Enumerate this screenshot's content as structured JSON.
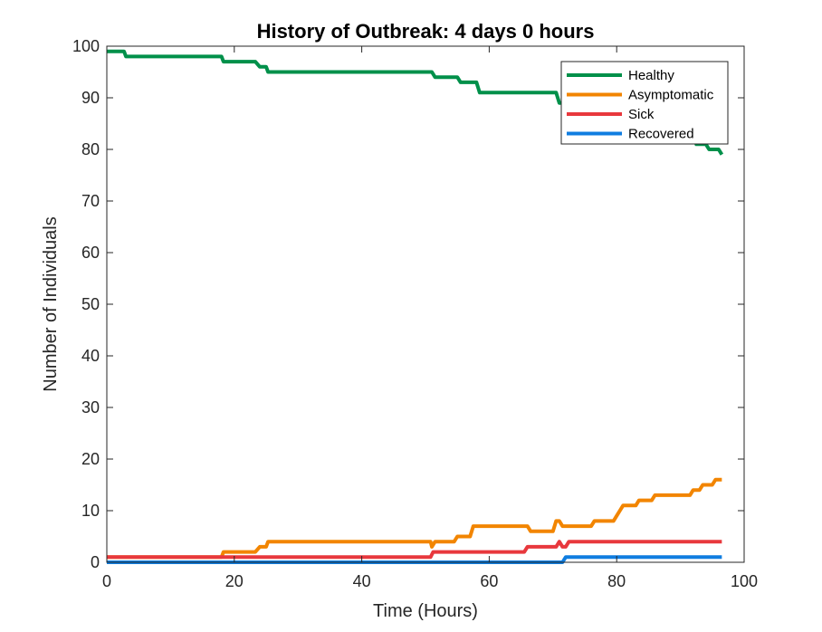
{
  "chart_data": {
    "type": "line",
    "title": "History of Outbreak: 4 days 0 hours",
    "xlabel": "Time (Hours)",
    "ylabel": "Number of Individuals",
    "xlim": [
      0,
      100
    ],
    "ylim": [
      0,
      100
    ],
    "xticks": [
      "0",
      "20",
      "40",
      "60",
      "80",
      "100"
    ],
    "yticks": [
      "0",
      "10",
      "20",
      "30",
      "40",
      "50",
      "60",
      "70",
      "80",
      "90",
      "100"
    ],
    "grid": false,
    "legend_position": "top-right",
    "series": [
      {
        "name": "Healthy",
        "color": "#00904A",
        "x": [
          0,
          2.7,
          3,
          18,
          18.3,
          23.3,
          24,
          25,
          25.3,
          51,
          51.5,
          55,
          55.5,
          58,
          58.5,
          70.5,
          71,
          72,
          72.3,
          78,
          78.5,
          80.5,
          81,
          85,
          85.5,
          88,
          88.5,
          92,
          92.5,
          94,
          94.5,
          96,
          96.5
        ],
        "y": [
          99,
          99,
          98,
          98,
          97,
          97,
          96,
          96,
          95,
          95,
          94,
          94,
          93,
          93,
          91,
          91,
          89,
          89,
          88,
          88,
          87,
          87,
          86,
          86,
          85,
          85,
          84,
          84,
          81,
          81,
          80,
          80,
          79
        ]
      },
      {
        "name": "Asymptomatic",
        "color": "#F28500",
        "x": [
          0,
          18,
          18.3,
          23.3,
          24,
          25,
          25.3,
          50.8,
          51,
          51.5,
          54.5,
          55,
          57,
          57.5,
          66,
          66.5,
          70,
          70.5,
          71,
          71.5,
          72,
          72.5,
          76,
          76.5,
          78,
          78.5,
          79.5,
          80,
          80.5,
          81,
          83,
          83.5,
          85.5,
          86,
          91.5,
          92,
          93,
          93.5,
          95,
          95.5,
          96.5
        ],
        "y": [
          1,
          1,
          2,
          2,
          3,
          3,
          4,
          4,
          3,
          4,
          4,
          5,
          5,
          7,
          7,
          6,
          6,
          8,
          8,
          7,
          7,
          7,
          7,
          8,
          8,
          8,
          8,
          9,
          10,
          11,
          11,
          12,
          12,
          13,
          13,
          14,
          14,
          15,
          15,
          16,
          16
        ]
      },
      {
        "name": "Sick",
        "color": "#E8383D",
        "x": [
          0,
          50.8,
          51.2,
          65.5,
          66,
          70.5,
          71,
          71.5,
          72,
          72.5,
          96.5
        ],
        "y": [
          1,
          1,
          2,
          2,
          3,
          3,
          4,
          3,
          3,
          4,
          4
        ]
      },
      {
        "name": "Recovered",
        "color": "#0F7DE0",
        "x": [
          0,
          71.5,
          72,
          96.5
        ],
        "y": [
          0,
          0,
          1,
          1
        ]
      }
    ]
  }
}
